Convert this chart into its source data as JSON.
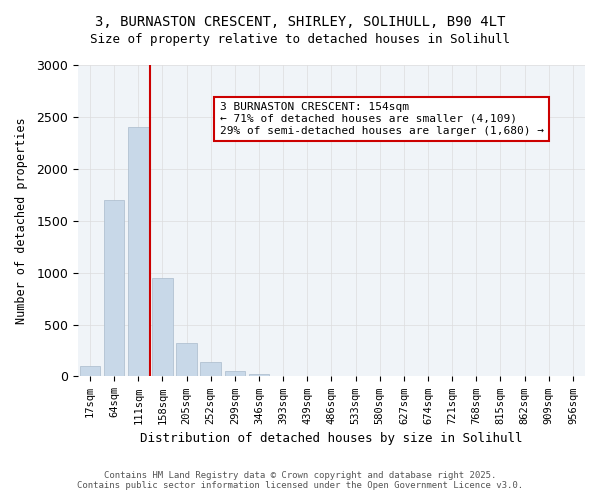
{
  "title1": "3, BURNASTON CRESCENT, SHIRLEY, SOLIHULL, B90 4LT",
  "title2": "Size of property relative to detached houses in Solihull",
  "xlabel": "Distribution of detached houses by size in Solihull",
  "ylabel": "Number of detached properties",
  "categories": [
    "17sqm",
    "64sqm",
    "111sqm",
    "158sqm",
    "205sqm",
    "252sqm",
    "299sqm",
    "346sqm",
    "393sqm",
    "439sqm",
    "486sqm",
    "533sqm",
    "580sqm",
    "627sqm",
    "674sqm",
    "721sqm",
    "768sqm",
    "815sqm",
    "862sqm",
    "909sqm",
    "956sqm"
  ],
  "values": [
    100,
    1700,
    2400,
    950,
    320,
    140,
    50,
    20,
    5,
    4,
    2,
    1,
    0,
    0,
    0,
    0,
    0,
    0,
    0,
    0,
    0
  ],
  "bar_color": "#c8d8e8",
  "bar_edge_color": "#aabbcc",
  "redline_index": 3,
  "annotation_text": "3 BURNASTON CRESCENT: 154sqm\n← 71% of detached houses are smaller (4,109)\n29% of semi-detached houses are larger (1,680) →",
  "annotation_box_color": "#ffffff",
  "annotation_box_edge_color": "#cc0000",
  "redline_color": "#cc0000",
  "ylim": [
    0,
    3000
  ],
  "yticks": [
    0,
    500,
    1000,
    1500,
    2000,
    2500,
    3000
  ],
  "grid_color": "#dddddd",
  "bg_color": "#f0f4f8",
  "footer1": "Contains HM Land Registry data © Crown copyright and database right 2025.",
  "footer2": "Contains public sector information licensed under the Open Government Licence v3.0."
}
